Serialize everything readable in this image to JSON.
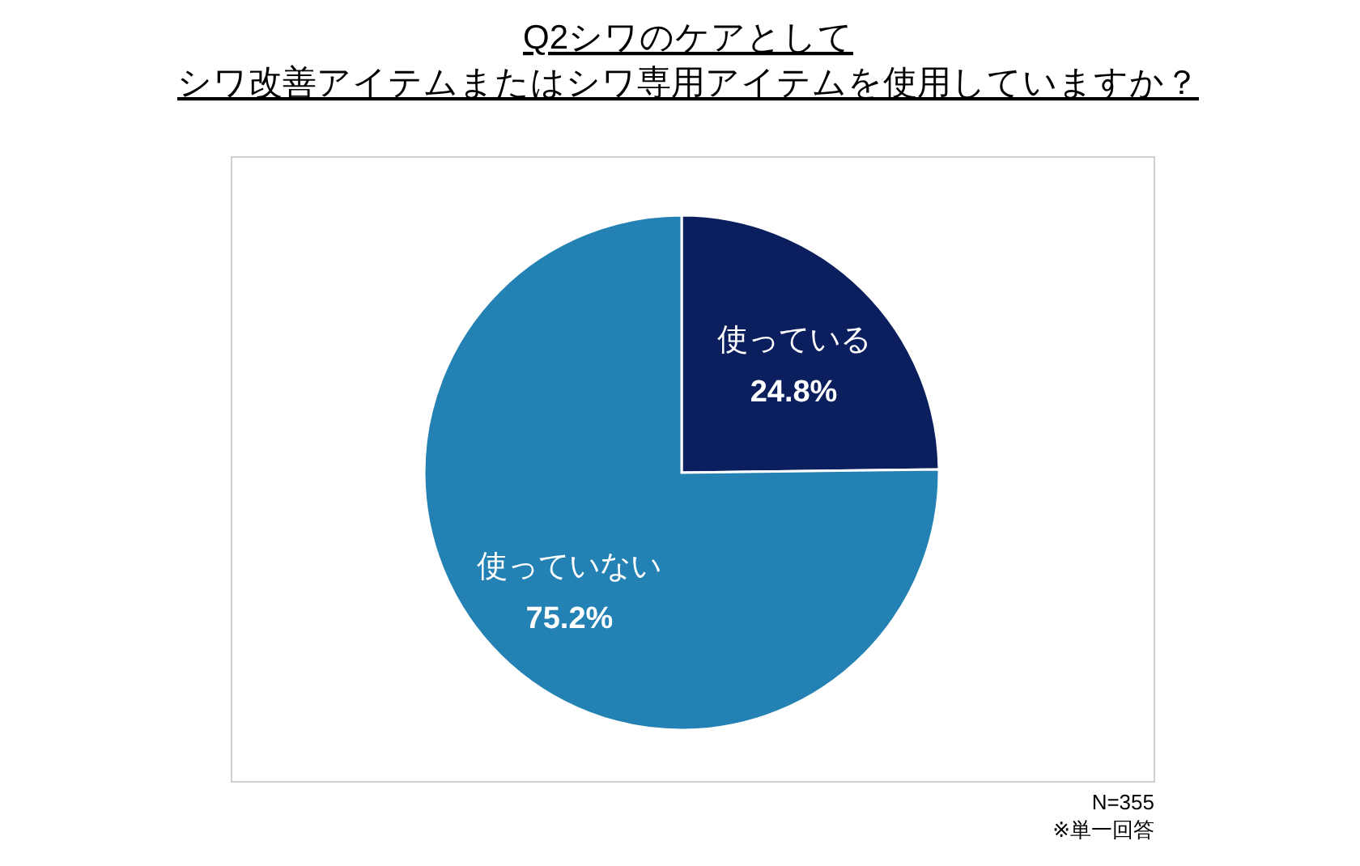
{
  "chart_data": {
    "type": "pie",
    "title": "Q2シワのケアとして",
    "subtitle": "シワ改善アイテムまたはシワ専用アイテムを使用していますか？",
    "categories": [
      "使っている",
      "使っていない"
    ],
    "values": [
      24.8,
      75.2
    ],
    "value_labels": [
      "24.8%",
      "75.2%"
    ],
    "colors": [
      "#0b1f5e",
      "#2381b3"
    ],
    "annotations": [
      "N=355",
      "※単一回答"
    ]
  }
}
